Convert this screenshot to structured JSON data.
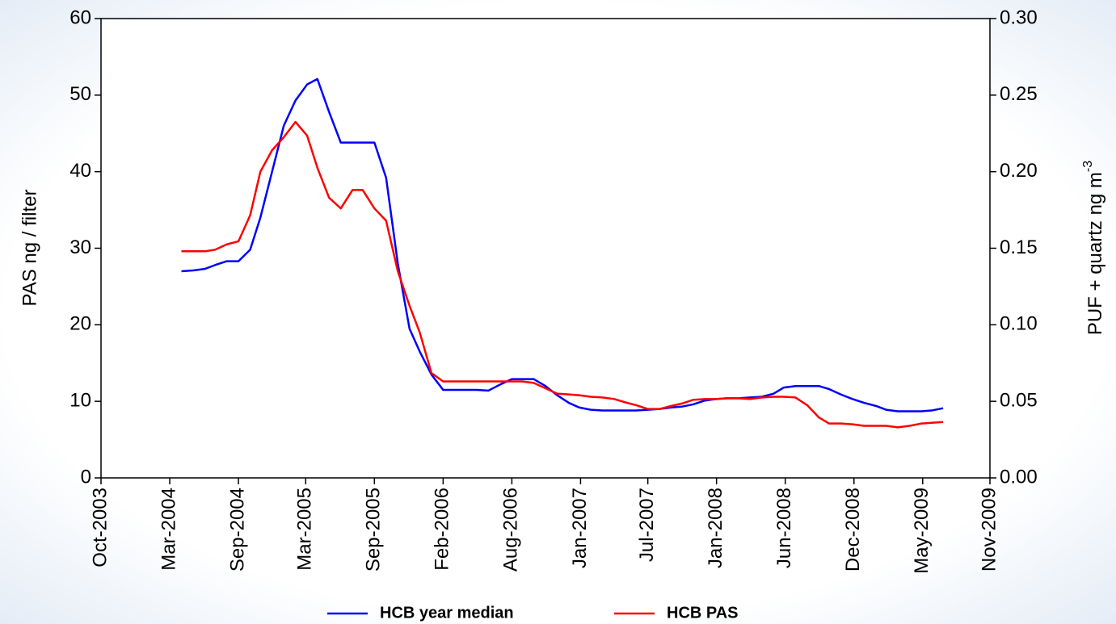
{
  "chart_data": {
    "type": "line",
    "ylabel": "PAS ng / filter",
    "y2label": "PUF + quartz ng m",
    "y2label_sup": "-3",
    "x": [
      2004.3,
      2004.38,
      2004.46,
      2004.53,
      2004.61,
      2004.69,
      2004.77,
      2004.84,
      2004.92,
      2005.0,
      2005.08,
      2005.16,
      2005.23,
      2005.31,
      2005.39,
      2005.47,
      2005.54,
      2005.62,
      2005.7,
      2005.78,
      2005.86,
      2005.93,
      2006.01,
      2006.09,
      2006.17,
      2006.25,
      2006.32,
      2006.4,
      2006.48,
      2006.56,
      2006.63,
      2006.71,
      2006.79,
      2006.87,
      2006.95,
      2007.02,
      2007.1,
      2007.18,
      2007.26,
      2007.33,
      2007.41,
      2007.49,
      2007.57,
      2007.65,
      2007.72,
      2007.8,
      2007.88,
      2007.96,
      2008.03,
      2008.11,
      2008.19,
      2008.27,
      2008.35,
      2008.42,
      2008.5,
      2008.58,
      2008.66,
      2008.73,
      2008.81,
      2008.89,
      2008.97,
      2009.05,
      2009.12,
      2009.2,
      2009.28,
      2009.36,
      2009.43,
      2009.51
    ],
    "series": [
      {
        "name": "HCB year median",
        "color": "#0000ff",
        "values": [
          27,
          27.1,
          27.3,
          27.8,
          28.3,
          28.3,
          29.8,
          34,
          40,
          46,
          49.3,
          51.4,
          52.1,
          47.8,
          43.8,
          43.8,
          43.8,
          43.8,
          39.2,
          28,
          19.5,
          16.5,
          13.5,
          11.5,
          11.5,
          11.5,
          11.5,
          11.4,
          12.2,
          12.9,
          12.9,
          12.9,
          12,
          10.8,
          9.8,
          9.2,
          8.9,
          8.8,
          8.8,
          8.8,
          8.8,
          8.9,
          9,
          9.2,
          9.3,
          9.6,
          10.1,
          10.3,
          10.4,
          10.4,
          10.5,
          10.6,
          11,
          11.8,
          12,
          12,
          12,
          11.6,
          10.9,
          10.3,
          9.8,
          9.4,
          8.9,
          8.7,
          8.7,
          8.7,
          8.8,
          9.1
        ]
      },
      {
        "name": "HCB PAS",
        "color": "#ff0000",
        "values": [
          29.6,
          29.6,
          29.6,
          29.8,
          30.5,
          30.9,
          34.3,
          40,
          42.8,
          44.5,
          46.5,
          44.7,
          40.5,
          36.6,
          35.2,
          37.6,
          37.6,
          35.2,
          33.6,
          27,
          22.5,
          19,
          13.7,
          12.6,
          12.6,
          12.6,
          12.6,
          12.6,
          12.6,
          12.6,
          12.6,
          12.4,
          11.7,
          11,
          10.9,
          10.8,
          10.6,
          10.5,
          10.3,
          9.9,
          9.5,
          9,
          9,
          9.4,
          9.7,
          10.2,
          10.3,
          10.3,
          10.4,
          10.4,
          10.3,
          10.5,
          10.6,
          10.6,
          10.5,
          9.5,
          7.9,
          7.1,
          7.1,
          7,
          6.8,
          6.8,
          6.8,
          6.6,
          6.8,
          7.1,
          7.2,
          7.3
        ]
      }
    ],
    "xlim": [
      2003.75,
      2009.83
    ],
    "xticks": [
      {
        "value": 2003.75,
        "label": "Oct-2003"
      },
      {
        "value": 2004.22,
        "label": "Mar-2004"
      },
      {
        "value": 2004.69,
        "label": "Sep-2004"
      },
      {
        "value": 2005.15,
        "label": "Mar-2005"
      },
      {
        "value": 2005.62,
        "label": "Sep-2005"
      },
      {
        "value": 2006.09,
        "label": "Feb-2006"
      },
      {
        "value": 2006.56,
        "label": "Aug-2006"
      },
      {
        "value": 2007.03,
        "label": "Jan-2007"
      },
      {
        "value": 2007.49,
        "label": "Jul-2007"
      },
      {
        "value": 2007.96,
        "label": "Jan-2008"
      },
      {
        "value": 2008.43,
        "label": "Jun-2008"
      },
      {
        "value": 2008.9,
        "label": "Dec-2008"
      },
      {
        "value": 2009.37,
        "label": "May-2009"
      },
      {
        "value": 2009.83,
        "label": "Nov-2009"
      }
    ],
    "ylim": [
      0,
      60
    ],
    "yticks": [
      0,
      10,
      20,
      30,
      40,
      50,
      60
    ],
    "y2lim": [
      0,
      0.3
    ],
    "y2ticks": [
      {
        "value": 0,
        "label": "0.00"
      },
      0.05,
      {
        "value": 0.1,
        "label": "0.10"
      },
      0.15,
      {
        "value": 0.2,
        "label": "0.20"
      },
      0.25,
      {
        "value": 0.3,
        "label": "0.30"
      }
    ],
    "grid": false,
    "legend": "bottom"
  }
}
